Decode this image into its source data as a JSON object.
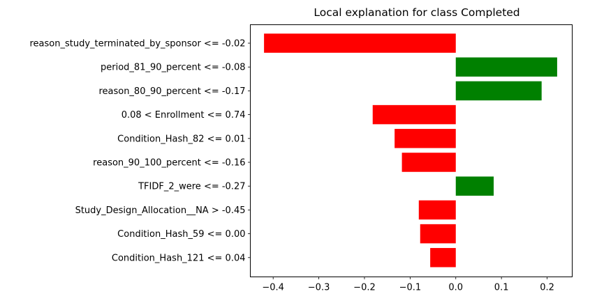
{
  "chart_data": {
    "type": "bar",
    "orientation": "horizontal",
    "title": "Local explanation for class Completed",
    "xlabel": "",
    "ylabel": "",
    "xlim": [
      -0.45,
      0.255
    ],
    "xticks": [
      -0.4,
      -0.3,
      -0.2,
      -0.1,
      0.0,
      0.1,
      0.2
    ],
    "xtick_labels": [
      "−0.4",
      "−0.3",
      "−0.2",
      "−0.1",
      "0.0",
      "0.1",
      "0.2"
    ],
    "grid": false,
    "legend": "none",
    "colors": {
      "positive": "#008000",
      "negative": "#ff0000"
    },
    "categories": [
      "reason_study_terminated_by_sponsor <= -0.02",
      "period_81_90_percent <= -0.08",
      "reason_80_90_percent <= -0.17",
      "0.08 < Enrollment <= 0.74",
      "Condition_Hash_82 <= 0.01",
      "reason_90_100_percent <= -0.16",
      "TFIDF_2_were <= -0.27",
      "Study_Design_Allocation__NA > -0.45",
      "Condition_Hash_59 <= 0.00",
      "Condition_Hash_121 <= 0.04"
    ],
    "values": [
      -0.42,
      0.222,
      0.188,
      -0.182,
      -0.134,
      -0.118,
      0.083,
      -0.081,
      -0.078,
      -0.056
    ]
  }
}
